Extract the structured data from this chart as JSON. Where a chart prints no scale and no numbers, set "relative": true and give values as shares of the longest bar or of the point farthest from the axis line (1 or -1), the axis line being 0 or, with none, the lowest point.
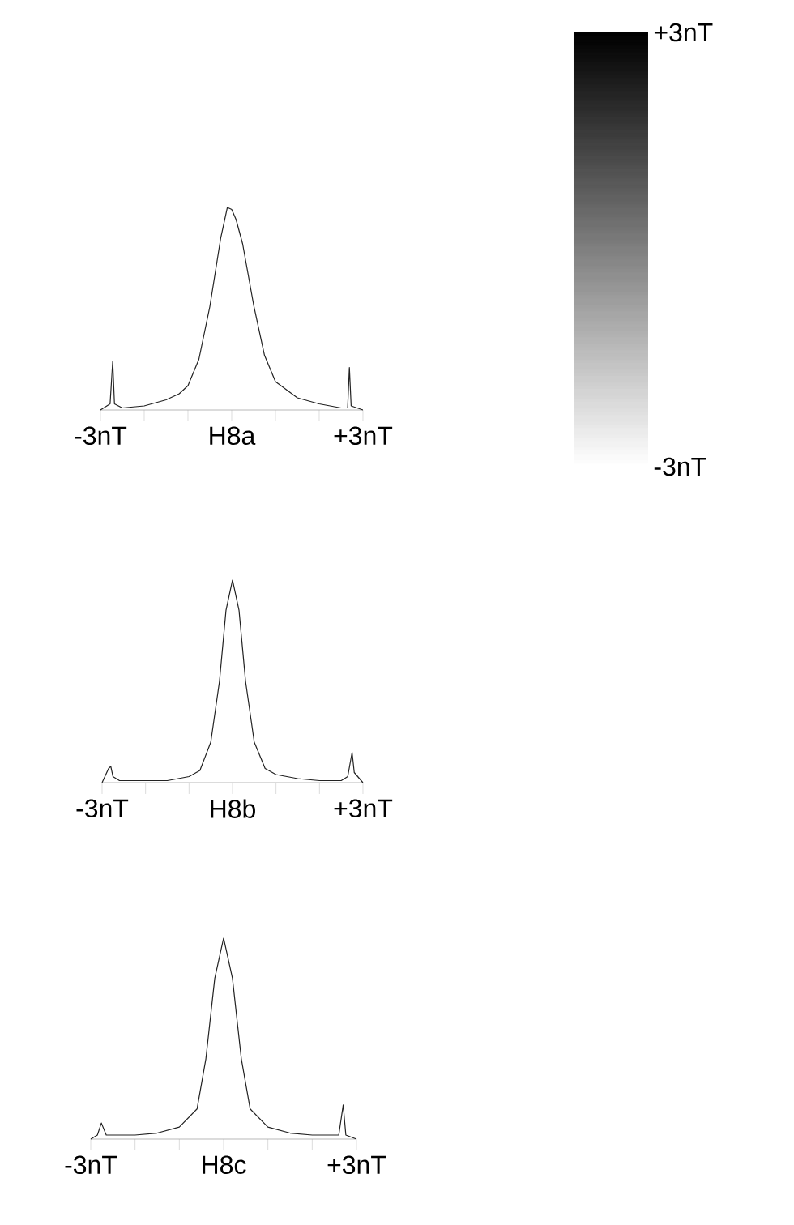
{
  "chart_data": [
    {
      "type": "line",
      "relative": true,
      "color": "#222222",
      "xlim": [
        -3,
        3
      ],
      "xticks": [
        {
          "value": -3,
          "label": "-3nT"
        },
        {
          "value": -2,
          "label": null
        },
        {
          "value": -1,
          "label": null
        },
        {
          "value": 0,
          "label": "H8a"
        },
        {
          "value": 1,
          "label": null
        },
        {
          "value": 2,
          "label": null
        },
        {
          "value": 3,
          "label": "+3nT"
        }
      ],
      "x": [
        -3,
        -2.78,
        -2.72,
        -2.68,
        -2.5,
        -2,
        -1.5,
        -1.2,
        -1,
        -0.75,
        -0.5,
        -0.25,
        -0.1,
        0,
        0.1,
        0.25,
        0.5,
        0.75,
        1,
        1.5,
        2,
        2.5,
        2.65,
        2.69,
        2.73,
        3
      ],
      "values": [
        0,
        0.03,
        0.24,
        0.03,
        0.01,
        0.02,
        0.05,
        0.08,
        0.12,
        0.25,
        0.51,
        0.85,
        1,
        0.99,
        0.94,
        0.82,
        0.52,
        0.27,
        0.14,
        0.06,
        0.03,
        0.01,
        0.01,
        0.21,
        0.02,
        0
      ]
    },
    {
      "type": "line",
      "relative": true,
      "color": "#222222",
      "xlim": [
        -3,
        3
      ],
      "xticks": [
        {
          "value": -3,
          "label": "-3nT"
        },
        {
          "value": -2,
          "label": null
        },
        {
          "value": -1,
          "label": null
        },
        {
          "value": 0,
          "label": "H8b"
        },
        {
          "value": 1,
          "label": null
        },
        {
          "value": 2,
          "label": null
        },
        {
          "value": 3,
          "label": "+3nT"
        }
      ],
      "x": [
        -3,
        -2.85,
        -2.8,
        -2.75,
        -2.6,
        -2,
        -1.5,
        -1,
        -0.75,
        -0.5,
        -0.3,
        -0.15,
        0,
        0.15,
        0.3,
        0.5,
        0.75,
        1,
        1.5,
        2,
        2.5,
        2.65,
        2.75,
        2.8,
        3
      ],
      "values": [
        0,
        0.07,
        0.08,
        0.03,
        0.01,
        0.01,
        0.01,
        0.03,
        0.06,
        0.2,
        0.5,
        0.85,
        1,
        0.85,
        0.5,
        0.2,
        0.07,
        0.04,
        0.02,
        0.01,
        0.01,
        0.03,
        0.15,
        0.05,
        0
      ]
    },
    {
      "type": "line",
      "relative": true,
      "color": "#222222",
      "xlim": [
        -3,
        3
      ],
      "xticks": [
        {
          "value": -3,
          "label": "-3nT"
        },
        {
          "value": -2,
          "label": null
        },
        {
          "value": -1,
          "label": null
        },
        {
          "value": 0,
          "label": "H8c"
        },
        {
          "value": 1,
          "label": null
        },
        {
          "value": 2,
          "label": null
        },
        {
          "value": 3,
          "label": "+3nT"
        }
      ],
      "x": [
        -3,
        -2.85,
        -2.76,
        -2.65,
        -2,
        -1.5,
        -1,
        -0.6,
        -0.4,
        -0.2,
        0,
        0.2,
        0.4,
        0.6,
        1,
        1.5,
        2,
        2.6,
        2.7,
        2.76,
        3
      ],
      "values": [
        0,
        0.02,
        0.08,
        0.02,
        0.02,
        0.03,
        0.06,
        0.15,
        0.4,
        0.8,
        1,
        0.8,
        0.4,
        0.15,
        0.06,
        0.03,
        0.02,
        0.02,
        0.17,
        0.02,
        0
      ]
    },
    {
      "type": "other",
      "annotations": [
        "+3nT",
        "-3nT"
      ]
    }
  ]
}
